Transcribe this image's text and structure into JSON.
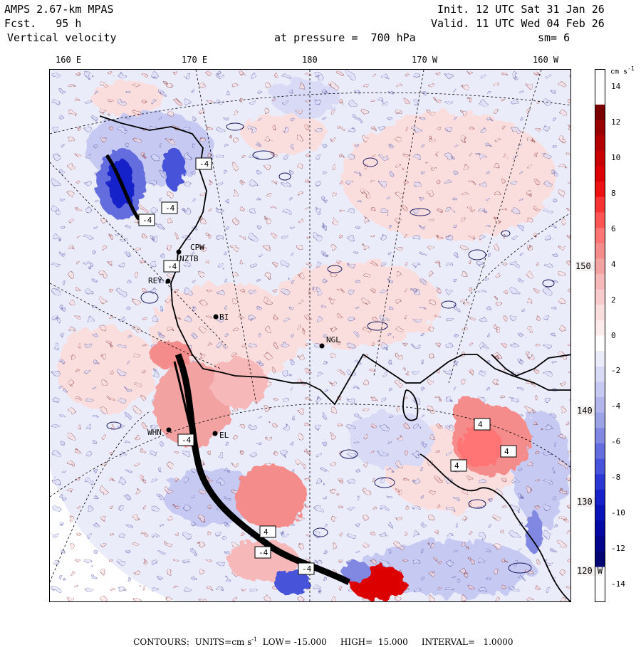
{
  "header": {
    "model": "AMPS 2.67-km MPAS",
    "forecast": "Fcst.   95 h",
    "field": "Vertical velocity",
    "init": "Init. 12 UTC Sat 31 Jan 26",
    "valid": "Valid. 11 UTC Wed 04 Feb 26",
    "pressure": "at pressure =  700 hPa",
    "smoothing": "sm= 6"
  },
  "longitude_labels": [
    "160 E",
    "170 E",
    "180",
    "170 W",
    "160 W"
  ],
  "latitude_labels": [
    "150 W",
    "140 W",
    "130 W",
    "120 W"
  ],
  "stations": [
    "CPW",
    "NZTB",
    "REY",
    "BI",
    "NGL",
    "WHN",
    "EL"
  ],
  "contour_labels": [
    "-4",
    "-4",
    "-4",
    "4",
    "4",
    "-4",
    "4",
    "4",
    "-4",
    "-4",
    "-4"
  ],
  "colorbar": {
    "unit": "cm s",
    "unit_exp": "-1",
    "ticks": [
      "14",
      "12",
      "10",
      "8",
      "6",
      "4",
      "2",
      "0",
      "-2",
      "-4",
      "-6",
      "-8",
      "-10",
      "-12",
      "-14"
    ],
    "levels": [
      {
        "value": 15,
        "color": "#7a0000"
      },
      {
        "value": 14,
        "color": "#990000"
      },
      {
        "value": 13,
        "color": "#b30000"
      },
      {
        "value": 12,
        "color": "#c80000"
      },
      {
        "value": 11,
        "color": "#dc0000"
      },
      {
        "value": 10,
        "color": "#ee1111"
      },
      {
        "value": 9,
        "color": "#f83333"
      },
      {
        "value": 8,
        "color": "#ff5555"
      },
      {
        "value": 7,
        "color": "#ff7474"
      },
      {
        "value": 6,
        "color": "#f48c8c"
      },
      {
        "value": 5,
        "color": "#f3a2a2"
      },
      {
        "value": 4,
        "color": "#f6b8b8"
      },
      {
        "value": 3,
        "color": "#f8cccc"
      },
      {
        "value": 2,
        "color": "#fadede"
      },
      {
        "value": 1,
        "color": "#fcebeb"
      },
      {
        "value": 0,
        "color": "#ffffff"
      },
      {
        "value": -1,
        "color": "#ebecfa"
      },
      {
        "value": -2,
        "color": "#d9dbf6"
      },
      {
        "value": -3,
        "color": "#c6c9f1"
      },
      {
        "value": -4,
        "color": "#b2b6ec"
      },
      {
        "value": -5,
        "color": "#9ca2e6"
      },
      {
        "value": -6,
        "color": "#8088e2"
      },
      {
        "value": -7,
        "color": "#636ddd"
      },
      {
        "value": -8,
        "color": "#4652d9"
      },
      {
        "value": -9,
        "color": "#2b37d2"
      },
      {
        "value": -10,
        "color": "#1621c9"
      },
      {
        "value": -11,
        "color": "#0a13b8"
      },
      {
        "value": -12,
        "color": "#0509a4"
      },
      {
        "value": -13,
        "color": "#03068c"
      },
      {
        "value": -14,
        "color": "#020472"
      }
    ]
  },
  "footer": {
    "contours_label": "CONTOURS:",
    "units_label": "UNITS=cm s",
    "units_exp": "-1",
    "low": "LOW= -15.000",
    "high": "HIGH=  15.000",
    "interval": "INTERVAL=   1.0000"
  },
  "colors": {
    "background_field": "#ebecfa",
    "weak_up": "#fadede",
    "weak_down": "#d9dbf6",
    "strong_up": "#f48c8c",
    "strong_down": "#8088e2"
  }
}
